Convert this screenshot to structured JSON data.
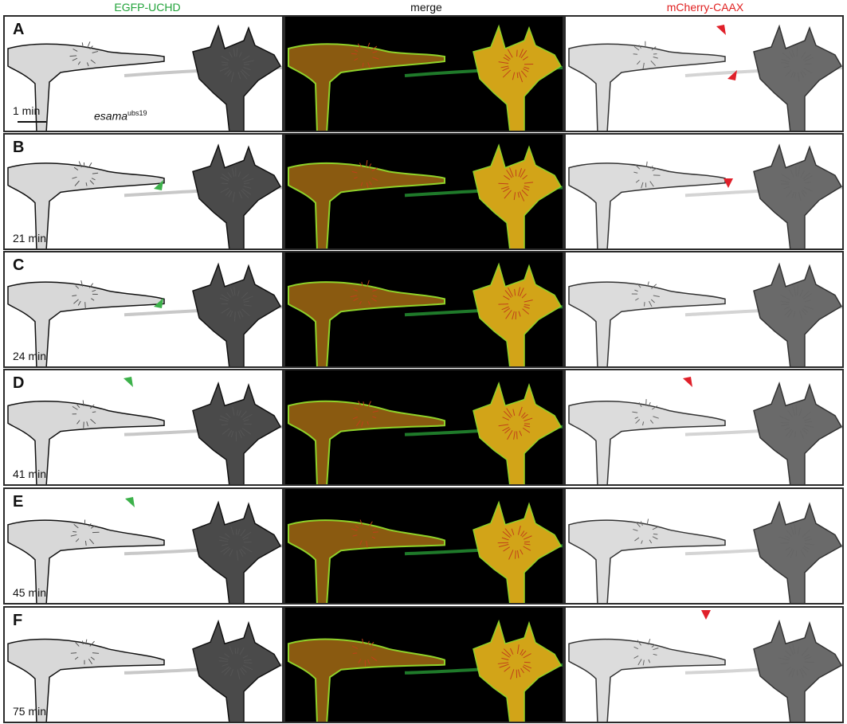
{
  "columns": [
    {
      "label": "EGFP-UCHD",
      "color": "#22a33a"
    },
    {
      "label": "merge",
      "color": "#111111"
    },
    {
      "label": "mCherry-CAAX",
      "color": "#e02020"
    }
  ],
  "panels": [
    {
      "letter": "A",
      "time": "1 min"
    },
    {
      "letter": "B",
      "time": "21 min"
    },
    {
      "letter": "C",
      "time": "24 min"
    },
    {
      "letter": "D",
      "time": "41 min"
    },
    {
      "letter": "E",
      "time": "45 min"
    },
    {
      "letter": "F",
      "time": "75 min"
    }
  ],
  "genotype": {
    "name": "esama",
    "allele": "ubs19"
  },
  "arrowhead_colors": {
    "green": "#3cb14a",
    "red": "#e0202a"
  }
}
